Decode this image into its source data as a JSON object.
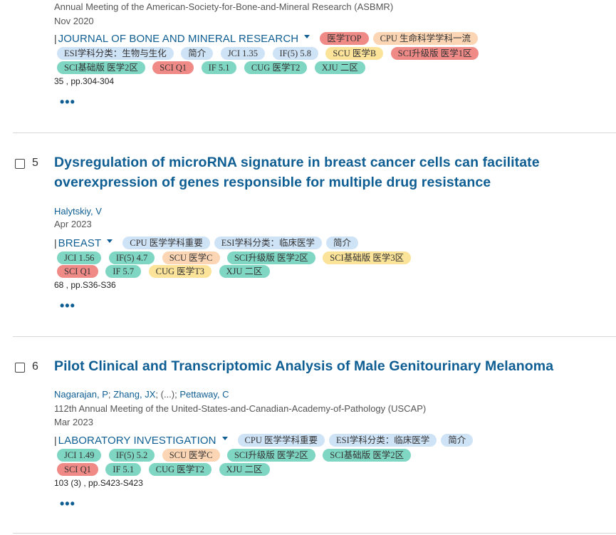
{
  "records": [
    {
      "conference": "Annual Meeting of the American-Society-for-Bone-and-Mineral Research (ASBMR)",
      "date": "Nov 2020",
      "journal": "JOURNAL OF BONE AND MINERAL RESEARCH",
      "tags_row1": [
        "医学TOP",
        "CPU 生命科学学科一流"
      ],
      "tags_row2": [
        "ESI学科分类：生物与生化",
        "简介",
        "JCI 1.35",
        "IF(5) 5.8",
        "SCU 医学B",
        "SCI升级版 医学1区"
      ],
      "tags_row3": [
        "SCI基础版 医学2区",
        "SCI Q1",
        "IF 5.1",
        "CUG 医学T2",
        "XJU 二区"
      ],
      "volume": "35 , pp.304-304",
      "more": "•••"
    },
    {
      "number": "5",
      "title": "Dysregulation of microRNA signature in breast cancer cells can facilitate overexpression of genes responsible for multiple drug resistance",
      "authors": [
        "Halytskiy, V"
      ],
      "date": "Apr 2023",
      "journal": "BREAST",
      "tags_row1": [
        "CPU 医学学科重要",
        "ESI学科分类：临床医学",
        "简介"
      ],
      "tags_row2": [
        "JCI 1.56",
        "IF(5) 4.7",
        "SCU 医学C",
        "SCI升级版 医学2区",
        "SCI基础版 医学3区"
      ],
      "tags_row3": [
        "SCI Q1",
        "IF 5.7",
        "CUG 医学T3",
        "XJU 二区"
      ],
      "volume": "68 , pp.S36-S36",
      "more": "•••"
    },
    {
      "number": "6",
      "title": "Pilot Clinical and Transcriptomic Analysis of Male Genitourinary Melanoma",
      "authors": [
        "Nagarajan, P",
        "Zhang, JX",
        "(...)",
        "Pettaway, C"
      ],
      "conference": "112th Annual Meeting of the United-States-and-Canadian-Academy-of-Pathology (USCAP)",
      "date": "Mar 2023",
      "journal": "LABORATORY INVESTIGATION",
      "tags_row1": [
        "CPU 医学学科重要",
        "ESI学科分类：临床医学",
        "简介"
      ],
      "tags_row2": [
        "JCI 1.49",
        "IF(5) 5.2",
        "SCU 医学C",
        "SCI升级版 医学2区",
        "SCI基础版 医学2区"
      ],
      "tags_row3": [
        "SCI Q1",
        "IF 5.1",
        "CUG 医学T2",
        "XJU 二区"
      ],
      "volume": "103 (3) , pp.S423-S423",
      "more": "•••"
    }
  ],
  "colors": {
    "link": "#0f5e93",
    "tag_blue": "#cfe3f7",
    "tag_red": "#f08a87",
    "tag_orange": "#fbd5b4",
    "tag_yellow": "#fbe39a",
    "tag_teal": "#7fd6c3"
  }
}
